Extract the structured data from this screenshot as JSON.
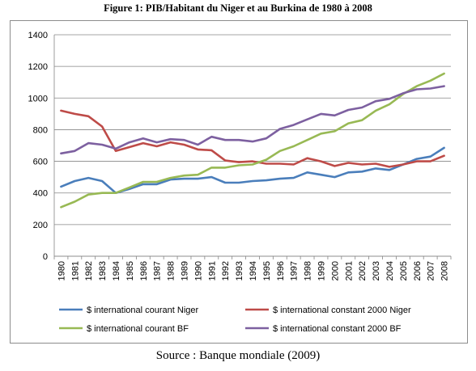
{
  "title": "Figure 1: PIB/Habitant du Niger et au Burkina de 1980 à 2008",
  "source": "Source : Banque mondiale (2009)",
  "chart_data": {
    "type": "line",
    "title": "Figure 1: PIB/Habitant du Niger et au Burkina de 1980 à 2008",
    "xlabel": "",
    "ylabel": "",
    "ylim": [
      0,
      1400
    ],
    "yticks": [
      "0",
      "200",
      "400",
      "600",
      "800",
      "1000",
      "1200",
      "1400"
    ],
    "grid": true,
    "legend_position": "bottom",
    "categories": [
      "1980",
      "1981",
      "1982",
      "1983",
      "1984",
      "1985",
      "1986",
      "1987",
      "1988",
      "1989",
      "1990",
      "1991",
      "1992",
      "1993",
      "1994",
      "1995",
      "1996",
      "1997",
      "1998",
      "1999",
      "2000",
      "2001",
      "2002",
      "2003",
      "2004",
      "2005",
      "2006",
      "2007",
      "2008"
    ],
    "series": [
      {
        "name": "$ international courant Niger",
        "color": "#4a7ebb",
        "values": [
          440,
          475,
          495,
          475,
          400,
          425,
          455,
          455,
          485,
          490,
          490,
          500,
          465,
          465,
          475,
          480,
          490,
          495,
          530,
          515,
          500,
          530,
          535,
          555,
          545,
          580,
          615,
          630,
          685
        ]
      },
      {
        "name": "$ international constant 2000 Niger",
        "color": "#be4b48",
        "values": [
          920,
          900,
          885,
          820,
          665,
          690,
          715,
          695,
          720,
          705,
          675,
          670,
          605,
          595,
          600,
          585,
          585,
          580,
          620,
          600,
          570,
          590,
          580,
          585,
          565,
          580,
          600,
          600,
          635
        ]
      },
      {
        "name": "$ international courant BF",
        "color": "#98b954",
        "values": [
          310,
          345,
          390,
          400,
          400,
          435,
          470,
          470,
          495,
          510,
          515,
          560,
          560,
          575,
          580,
          610,
          665,
          695,
          735,
          775,
          790,
          840,
          860,
          920,
          960,
          1025,
          1075,
          1110,
          1155
        ]
      },
      {
        "name": "$ international constant 2000 BF",
        "color": "#7d60a0",
        "values": [
          650,
          665,
          715,
          705,
          680,
          720,
          745,
          720,
          740,
          735,
          705,
          755,
          735,
          735,
          725,
          745,
          805,
          830,
          865,
          900,
          890,
          925,
          940,
          980,
          995,
          1030,
          1055,
          1060,
          1075
        ]
      }
    ]
  }
}
